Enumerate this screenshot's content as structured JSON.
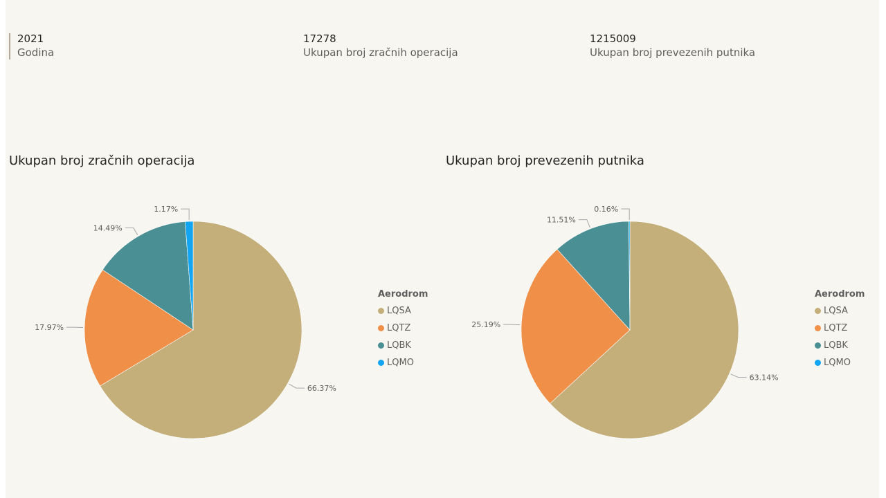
{
  "kpis": [
    {
      "value": "2021",
      "label": "Godina"
    },
    {
      "value": "17278",
      "label": "Ukupan broj zračnih operacija"
    },
    {
      "value": "1215009",
      "label": "Ukupan broj prevezenih putnika"
    }
  ],
  "chart_data": [
    {
      "type": "pie",
      "title": "Ukupan broj zračnih operacija",
      "legend_title": "Aerodrom",
      "legend_position": "right",
      "categories": [
        "LQSA",
        "LQTZ",
        "LQBK",
        "LQMO"
      ],
      "values": [
        66.37,
        17.97,
        14.49,
        1.17
      ],
      "labels": [
        "66.37%",
        "17.97%",
        "14.49%",
        "1.17%"
      ],
      "colors": [
        "#c4af7b",
        "#f08f47",
        "#4a8f93",
        "#12a5f4"
      ]
    },
    {
      "type": "pie",
      "title": "Ukupan broj prevezenih putnika",
      "legend_title": "Aerodrom",
      "legend_position": "right",
      "categories": [
        "LQSA",
        "LQTZ",
        "LQBK",
        "LQMO"
      ],
      "values": [
        63.14,
        25.19,
        11.51,
        0.16
      ],
      "labels": [
        "63.14%",
        "25.19%",
        "11.51%",
        "0.16%"
      ],
      "colors": [
        "#c4af7b",
        "#f08f47",
        "#4a8f93",
        "#12a5f4"
      ]
    }
  ]
}
